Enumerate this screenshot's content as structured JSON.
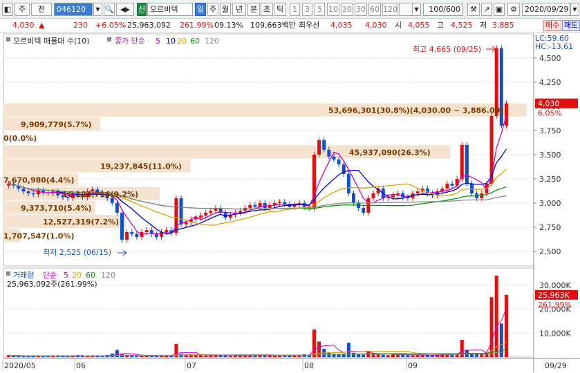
{
  "toolbar": {
    "type_label": "주",
    "mode_label": "전",
    "code": "046120",
    "stock_name": "오르비텍",
    "new_badge": "신",
    "periods": [
      "일",
      "주",
      "월",
      "년",
      "분",
      "초",
      "틱"
    ],
    "active_period": "일",
    "minute_options": [
      "1",
      "3",
      "5",
      "10",
      "20",
      "30",
      "60",
      "120"
    ],
    "count": "100/600",
    "date": "2020/09/29"
  },
  "info": {
    "price": "4,030",
    "arrow": "▲",
    "change": "230",
    "change_pct": "+6.05%",
    "volume": "25,963,092",
    "volume_pct": "261.99%",
    "turnover": "09.13%",
    "amount": "109,663백만",
    "best_label": "최우선",
    "best_ask": "4,035",
    "best_bid": "4,030",
    "open_label": "시",
    "open": "4,055",
    "high_label": "고",
    "high": "4,525",
    "low_label": "저",
    "low": "3,885",
    "buy_label": "매수",
    "sell_label": "매도"
  },
  "chart_data": {
    "type": "candlestick",
    "title": "오르비텍 매물대 수(10)",
    "ma_label": "종가 단순",
    "ma_periods": [
      "5",
      "10",
      "20",
      "60",
      "120"
    ],
    "ma_colors": [
      "#cc00cc",
      "#0000cc",
      "#e0a000",
      "#009900",
      "#888888"
    ],
    "ylim": [
      2350,
      4720
    ],
    "yticks": [
      2500,
      2750,
      3000,
      3250,
      3500,
      3750,
      4000,
      4250,
      4500
    ],
    "ytick_labels": [
      "2,500",
      "2,750",
      "3,000",
      "3,250",
      "3,500",
      "3,750",
      "4,000",
      "4,250",
      "4,500"
    ],
    "lc_label": "LC:59.60",
    "hc_label": "HC:-13.61",
    "current_price_label": "4,030",
    "current_pct_label": "6.05%",
    "high_annotation": "최고 4,665 (09/25)",
    "low_annotation": "최저 2,525 (06/15)",
    "x_labels": [
      "2020/05",
      "06",
      "07",
      "08",
      "09",
      "09/29"
    ],
    "volume_profile": [
      {
        "label": "53,696,301(30.8%)(4,030.00 ~ 3,886.00)",
        "lo": 3886,
        "hi": 4030,
        "share": 30.8
      },
      {
        "label": "9,909,779(5.7%)",
        "lo": 3742,
        "hi": 3886,
        "share": 5.7
      },
      {
        "label": "0(0.0%)",
        "lo": 3598,
        "hi": 3742,
        "share": 0.0
      },
      {
        "label": "45,937,090(26.3%)",
        "lo": 3454,
        "hi": 3598,
        "share": 26.3
      },
      {
        "label": "19,237,845(11.0%)",
        "lo": 3310,
        "hi": 3454,
        "share": 11.0
      },
      {
        "label": "7,670,980(4.4%)",
        "lo": 3166,
        "hi": 3310,
        "share": 4.4
      },
      {
        "label": "16,124,716(9.2%)",
        "lo": 3022,
        "hi": 3166,
        "share": 9.2
      },
      {
        "label": "9,373,710(5.4%)",
        "lo": 2878,
        "hi": 3022,
        "share": 5.4
      },
      {
        "label": "12,527,319(7.2%)",
        "lo": 2734,
        "hi": 2878,
        "share": 7.2
      },
      {
        "label": "1,707,547(1.0%)",
        "lo": 2590,
        "hi": 2734,
        "share": 1.0
      }
    ],
    "closes": [
      3200,
      3180,
      3150,
      3120,
      3100,
      3090,
      3130,
      3110,
      3100,
      3120,
      3080,
      3060,
      3050,
      3100,
      3080,
      3060,
      3120,
      3140,
      3110,
      3080,
      3050,
      3000,
      2900,
      2620,
      2700,
      2680,
      2650,
      2700,
      2720,
      2680,
      2650,
      2700,
      2720,
      2690,
      3050,
      2780,
      2800,
      2830,
      2850,
      2870,
      2900,
      2920,
      2950,
      2900,
      2850,
      2880,
      2900,
      2920,
      2950,
      2980,
      2960,
      3000,
      2950,
      2980,
      3000,
      3010,
      2990,
      2960,
      2980,
      3000,
      2960,
      2950,
      3500,
      3650,
      3550,
      3480,
      3450,
      3400,
      3300,
      3100,
      3000,
      2950,
      2900,
      3050,
      3100,
      3150,
      3050,
      3060,
      3080,
      3100,
      3060,
      3050,
      3100,
      3120,
      3150,
      3100,
      3080,
      3120,
      3150,
      3200,
      3180,
      3250,
      3600,
      3200,
      3100,
      3050,
      3100,
      3200,
      3900,
      4600,
      3800,
      4030
    ],
    "volume_series": {
      "name": "거래량",
      "ma_label": "단순",
      "ma_periods": [
        "5",
        "20",
        "60",
        "120"
      ],
      "current_label": "25,963,092주(261.99%)",
      "ytick_labels": [
        "10,000K",
        "20,000K",
        "30,000K"
      ],
      "yticks": [
        10000,
        20000,
        30000
      ],
      "ylim": [
        0,
        36000
      ],
      "current_value_label": "25,963K",
      "current_pct_label": "261.99%",
      "values": [
        800,
        600,
        500,
        400,
        500,
        600,
        700,
        500,
        400,
        500,
        600,
        700,
        500,
        600,
        800,
        500,
        400,
        600,
        700,
        500,
        900,
        1500,
        3000,
        1200,
        800,
        600,
        500,
        700,
        600,
        500,
        600,
        700,
        500,
        800,
        5500,
        1500,
        1000,
        800,
        700,
        900,
        600,
        800,
        1000,
        700,
        800,
        600,
        700,
        800,
        900,
        700,
        600,
        800,
        700,
        1000,
        900,
        700,
        600,
        700,
        800,
        900,
        1200,
        900,
        11500,
        6500,
        3500,
        2000,
        1500,
        1200,
        1500,
        6000,
        1800,
        1200,
        1000,
        2500,
        1500,
        1200,
        1000,
        800,
        1000,
        900,
        1200,
        800,
        700,
        900,
        1000,
        800,
        700,
        900,
        1100,
        1300,
        1200,
        1600,
        7200,
        3000,
        1500,
        1200,
        1500,
        2000,
        25000,
        34000,
        14000,
        25963
      ]
    }
  }
}
